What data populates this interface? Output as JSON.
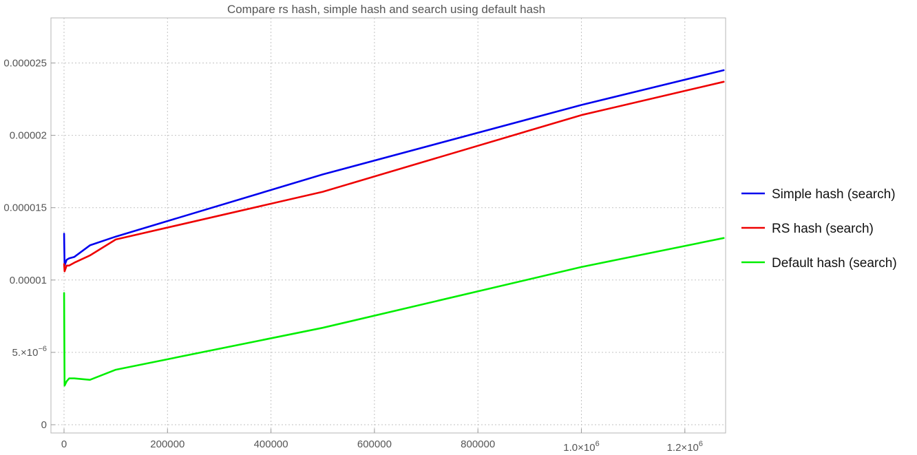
{
  "chart_data": {
    "type": "line",
    "title": "Compare rs hash, simple hash and search using default hash",
    "xlabel": "",
    "ylabel": "",
    "xlim": [
      0,
      1275000
    ],
    "ylim": [
      0,
      2.85e-05
    ],
    "grid": true,
    "legend_position": "right",
    "x_ticks": [
      {
        "value": 0,
        "label": "0"
      },
      {
        "value": 200000,
        "label": "200000"
      },
      {
        "value": 400000,
        "label": "400000"
      },
      {
        "value": 600000,
        "label": "600000"
      },
      {
        "value": 800000,
        "label": "800000"
      },
      {
        "value": 1000000,
        "label": "1.0×10",
        "exp": "6"
      },
      {
        "value": 1200000,
        "label": "1.2×10",
        "exp": "6"
      }
    ],
    "y_ticks": [
      {
        "value": 0,
        "label": "0"
      },
      {
        "value": 5e-06,
        "label": "5.×10",
        "exp": "−6"
      },
      {
        "value": 1e-05,
        "label": "0.00001"
      },
      {
        "value": 1.5e-05,
        "label": "0.000015"
      },
      {
        "value": 2e-05,
        "label": "0.00002"
      },
      {
        "value": 2.5e-05,
        "label": "0.000025"
      }
    ],
    "series": [
      {
        "name": "Simple hash (search)",
        "color": "#0000ee",
        "points": [
          [
            100,
            1.32e-05
          ],
          [
            1000,
            1.1e-05
          ],
          [
            5000,
            1.14e-05
          ],
          [
            10000,
            1.15e-05
          ],
          [
            20000,
            1.16e-05
          ],
          [
            50000,
            1.24e-05
          ],
          [
            100000,
            1.3e-05
          ],
          [
            500000,
            1.73e-05
          ],
          [
            1000000,
            2.21e-05
          ],
          [
            1275000,
            2.45e-05
          ]
        ]
      },
      {
        "name": "RS hash (search)",
        "color": "#ee0000",
        "points": [
          [
            100,
            1.11e-05
          ],
          [
            1000,
            1.06e-05
          ],
          [
            5000,
            1.1e-05
          ],
          [
            10000,
            1.1e-05
          ],
          [
            20000,
            1.12e-05
          ],
          [
            50000,
            1.17e-05
          ],
          [
            100000,
            1.28e-05
          ],
          [
            500000,
            1.61e-05
          ],
          [
            1000000,
            2.14e-05
          ],
          [
            1275000,
            2.37e-05
          ]
        ]
      },
      {
        "name": "Default hash (search)",
        "color": "#00ee00",
        "points": [
          [
            100,
            9.1e-06
          ],
          [
            1000,
            2.7e-06
          ],
          [
            5000,
            3e-06
          ],
          [
            10000,
            3.2e-06
          ],
          [
            20000,
            3.2e-06
          ],
          [
            50000,
            3.1e-06
          ],
          [
            100000,
            3.8e-06
          ],
          [
            500000,
            6.7e-06
          ],
          [
            1000000,
            1.09e-05
          ],
          [
            1275000,
            1.29e-05
          ]
        ]
      }
    ]
  }
}
